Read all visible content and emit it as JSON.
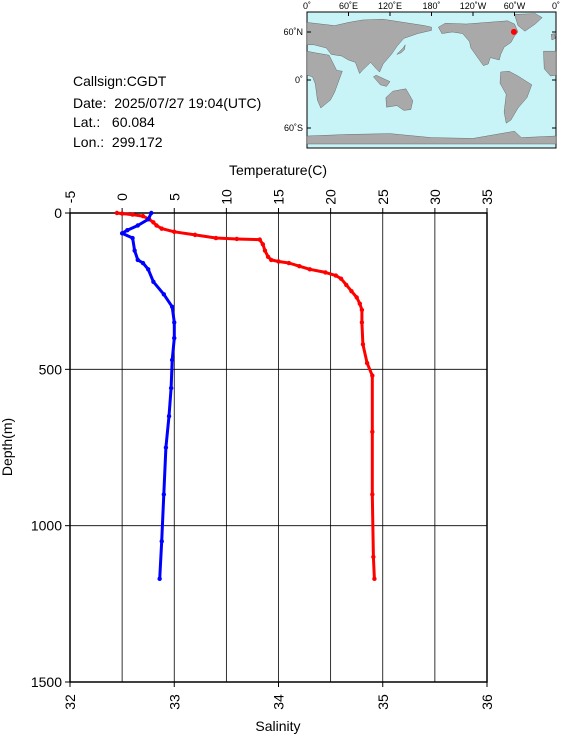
{
  "info": {
    "callsign": "Callsign:CGDT",
    "date": "Date:  2025/07/27 19:04(UTC)",
    "lat": "Lat.:   60.084",
    "lon": "Lon.:  299.172"
  },
  "map": {
    "top_labels": [
      "0˚",
      "60˚E",
      "120˚E",
      "180˚",
      "120˚W",
      "60˚W",
      "0˚"
    ],
    "side_labels": [
      "60˚N",
      "0˚",
      "60˚S"
    ],
    "ocean_color": "#c8f4f8",
    "land_color": "#a9a9a9",
    "marker_color": "#ff0000",
    "marker_lon": 299.172,
    "marker_lat": 60.084
  },
  "chart_data": {
    "type": "line",
    "x_top": {
      "label": "Temperature(C)",
      "range": [
        -5,
        35
      ],
      "ticks": [
        "-5",
        "0",
        "5",
        "10",
        "15",
        "20",
        "25",
        "30",
        "35"
      ]
    },
    "x_bottom": {
      "label": "Salinity",
      "range": [
        32,
        36
      ],
      "ticks": [
        "32",
        "33",
        "34",
        "35",
        "36"
      ]
    },
    "y": {
      "label": "Depth(m)",
      "range": [
        0,
        1500
      ],
      "inverted": true,
      "ticks": [
        "0",
        "500",
        "1000",
        "1500"
      ]
    },
    "grid": true,
    "series": [
      {
        "color": "#ff0000",
        "axis": "top",
        "points": [
          [
            -0.5,
            0
          ],
          [
            0,
            2
          ],
          [
            1,
            5
          ],
          [
            2,
            10
          ],
          [
            2.6,
            20
          ],
          [
            3,
            30
          ],
          [
            3.3,
            40
          ],
          [
            3.8,
            50
          ],
          [
            5,
            60
          ],
          [
            7,
            70
          ],
          [
            9,
            80
          ],
          [
            11,
            83
          ],
          [
            13.2,
            85
          ],
          [
            13.5,
            100
          ],
          [
            13.7,
            120
          ],
          [
            14,
            140
          ],
          [
            14.3,
            150
          ],
          [
            15,
            155
          ],
          [
            16,
            160
          ],
          [
            17,
            170
          ],
          [
            18,
            180
          ],
          [
            19.5,
            190
          ],
          [
            20.5,
            200
          ],
          [
            21,
            210
          ],
          [
            21.5,
            230
          ],
          [
            22,
            250
          ],
          [
            22.5,
            270
          ],
          [
            22.8,
            290
          ],
          [
            23,
            310
          ],
          [
            23,
            350
          ],
          [
            23.1,
            420
          ],
          [
            23.5,
            480
          ],
          [
            24,
            520
          ],
          [
            24,
            700
          ],
          [
            24,
            900
          ],
          [
            24.1,
            1100
          ],
          [
            24.2,
            1170
          ]
        ]
      },
      {
        "color": "#0000ff",
        "axis": "bottom",
        "points": [
          [
            32.78,
            0
          ],
          [
            32.75,
            20
          ],
          [
            32.65,
            40
          ],
          [
            32.55,
            55
          ],
          [
            32.5,
            65
          ],
          [
            32.6,
            80
          ],
          [
            32.62,
            120
          ],
          [
            32.65,
            150
          ],
          [
            32.7,
            160
          ],
          [
            32.75,
            180
          ],
          [
            32.8,
            220
          ],
          [
            32.9,
            260
          ],
          [
            32.98,
            300
          ],
          [
            33.0,
            350
          ],
          [
            33.0,
            400
          ],
          [
            32.98,
            470
          ],
          [
            32.97,
            560
          ],
          [
            32.95,
            650
          ],
          [
            32.92,
            750
          ],
          [
            32.9,
            900
          ],
          [
            32.88,
            1050
          ],
          [
            32.86,
            1170
          ]
        ]
      }
    ]
  }
}
